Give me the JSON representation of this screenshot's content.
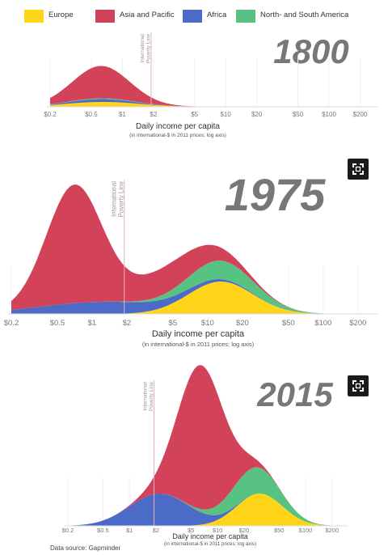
{
  "legend": [
    {
      "name": "Europe",
      "color": "#ffd51a"
    },
    {
      "name": "Asia and Pacific",
      "color": "#d2435a"
    },
    {
      "name": "Africa",
      "color": "#4c6bc6"
    },
    {
      "name": "North- and South America",
      "color": "#58c283"
    }
  ],
  "source": "Data source: Gapminder",
  "expand_icon": "expand-icon",
  "chart_data": [
    {
      "type": "area",
      "stacking": "stacked",
      "title": "1800",
      "xlabel": "Daily income per capita",
      "xsublabel": "(in international-$ in 2011 prices; log axis)",
      "xscale": "log",
      "xlim": [
        0.2,
        300
      ],
      "tick_values": [
        0.2,
        0.5,
        1,
        2,
        5,
        10,
        20,
        50,
        100,
        200
      ],
      "tick_labels": [
        "$0.2",
        "$0.5",
        "$1",
        "$2",
        "$5",
        "$10",
        "$20",
        "$50",
        "$100",
        "$200"
      ],
      "annotation": {
        "text": [
          "International",
          "Poverty Line"
        ],
        "x": 1.9
      },
      "series": [
        {
          "name": "Europe",
          "color": "#ffd51a",
          "peak_x": 0.65,
          "spread": 0.36,
          "height": 6
        },
        {
          "name": "Africa",
          "color": "#4c6bc6",
          "peak_x": 0.62,
          "spread": 0.3,
          "height": 3.5
        },
        {
          "name": "North- and South America",
          "color": "#58c283",
          "peak_x": 0.62,
          "spread": 0.3,
          "height": 1
        },
        {
          "name": "Asia and Pacific",
          "color": "#d2435a",
          "peak_x": 0.62,
          "spread": 0.27,
          "height": 40
        }
      ]
    },
    {
      "type": "area",
      "stacking": "stacked",
      "title": "1975",
      "xlabel": "Daily income per capita",
      "xsublabel": "(in international-$ in 2011 prices; log axis)",
      "xscale": "log",
      "xlim": [
        0.2,
        300
      ],
      "tick_values": [
        0.2,
        0.5,
        1,
        2,
        5,
        10,
        20,
        50,
        100,
        200
      ],
      "tick_labels": [
        "$0.2",
        "$0.5",
        "$1",
        "$2",
        "$5",
        "$10",
        "$20",
        "$50",
        "$100",
        "$200"
      ],
      "annotation": {
        "text": [
          "International",
          "Poverty Line"
        ],
        "x": 1.9
      },
      "series": [
        {
          "name": "Europe",
          "color": "#ffd51a",
          "peak_x": 13,
          "spread": 0.28,
          "height": 40
        },
        {
          "name": "Africa",
          "color": "#4c6bc6",
          "peak_x": 1.3,
          "spread": 0.55,
          "height": 15
        },
        {
          "name": "North- and South America",
          "color": "#58c283",
          "peak_x": 13,
          "spread": 0.3,
          "height": 23
        },
        {
          "name": "Asia and Pacific",
          "color": "#d2435a",
          "peak_x": 0.7,
          "spread": 0.24,
          "height": 145
        },
        {
          "name": "Asia and Pacific",
          "color": "#d2435a",
          "peak_x": 5,
          "spread": 0.34,
          "height": 34
        }
      ]
    },
    {
      "type": "area",
      "stacking": "stacked",
      "title": "2015",
      "xlabel": "Daily income per capita",
      "xsublabel": "(in international-$ in 2011 prices; log axis)",
      "xscale": "log",
      "xlim": [
        0.2,
        300
      ],
      "tick_values": [
        0.2,
        0.5,
        1,
        2,
        5,
        10,
        20,
        50,
        100,
        200
      ],
      "tick_labels": [
        "$0.2",
        "$0.5",
        "$1",
        "$2",
        "$5",
        "$10",
        "$20",
        "$50",
        "$100",
        "$200"
      ],
      "annotation": {
        "text": [
          "International",
          "Poverty Line"
        ],
        "x": 1.9
      },
      "series": [
        {
          "name": "Europe",
          "color": "#ffd51a",
          "peak_x": 30,
          "spread": 0.26,
          "height": 40
        },
        {
          "name": "Africa",
          "color": "#4c6bc6",
          "peak_x": 2.2,
          "spread": 0.34,
          "height": 40
        },
        {
          "name": "North- and South America",
          "color": "#58c283",
          "peak_x": 25,
          "spread": 0.28,
          "height": 33
        },
        {
          "name": "Asia and Pacific",
          "color": "#d2435a",
          "peak_x": 6.5,
          "spread": 0.26,
          "height": 178
        }
      ]
    }
  ]
}
